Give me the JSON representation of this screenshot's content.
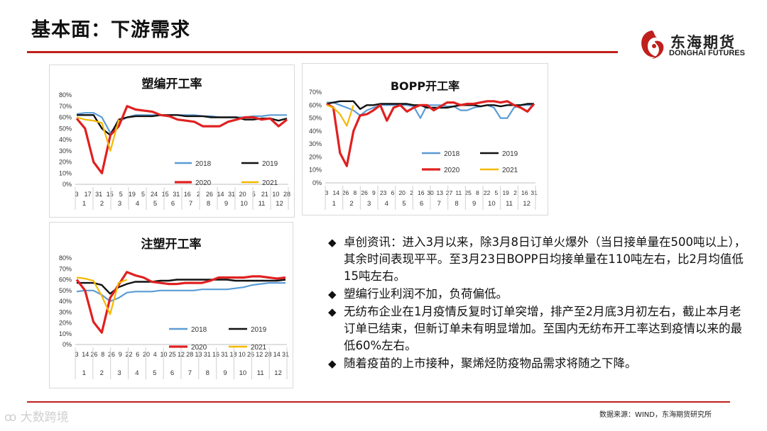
{
  "page": {
    "title": "基本面：下游需求"
  },
  "logo": {
    "name_cn": "东海期货",
    "name_en": "DONGHAI FUTURES"
  },
  "source": "数据来源：WIND，东海期货研究所",
  "watermark": "大数跨境",
  "colors": {
    "s2018": "#5b9bd5",
    "s2019": "#111111",
    "s2020": "#e02020",
    "s2021": "#f5b800",
    "accent": "#c0201c"
  },
  "bullets": [
    "卓创资讯：进入3月以来，除3月8日订单火爆外（当日接单量在500吨以上），其余时间表现平平。至3月23日BOPP日均接单量在110吨左右，比2月均值低15吨左右。",
    "塑编行业利润不加，负荷偏低。",
    "无纺布企业在1月疫情反复时订单突增，排产至2月底3月初左右，截止本月老订单已结束，但新订单未有明显增加。至国内无纺布开工率达到疫情以来的最低60%左右。",
    "随着疫苗的上市接种，聚烯烃防疫物品需求将随之下降。"
  ],
  "chart_data": [
    {
      "type": "line",
      "title": "塑编开工率",
      "ylim": [
        0,
        80
      ],
      "yticks": [
        "0%",
        "10%",
        "20%",
        "30%",
        "40%",
        "50%",
        "60%",
        "70%",
        "80%"
      ],
      "xticks": [
        "3",
        "17",
        "31",
        "15",
        "5",
        "19",
        "5",
        "24",
        "15",
        "31",
        "16",
        "2",
        "26",
        "14",
        "31",
        "20",
        "5",
        "21",
        "10",
        "28"
      ],
      "months": [
        "1",
        "2",
        "3",
        "4",
        "5",
        "6",
        "7",
        "8",
        "9",
        "10",
        "11",
        "12"
      ],
      "legend": [
        "2018",
        "2019",
        "2020",
        "2021"
      ],
      "series": [
        {
          "name": "2018",
          "values": [
            63,
            64,
            64,
            60,
            46,
            56,
            60,
            62,
            62,
            62,
            62,
            62,
            62,
            62,
            62,
            61,
            61,
            60,
            60,
            60,
            60,
            61,
            61,
            62,
            62,
            62
          ]
        },
        {
          "name": "2019",
          "values": [
            62,
            62,
            62,
            50,
            44,
            58,
            60,
            61,
            61,
            61,
            62,
            62,
            62,
            61,
            61,
            61,
            60,
            60,
            60,
            60,
            58,
            58,
            59,
            59,
            57,
            59
          ]
        },
        {
          "name": "2020",
          "values": [
            59,
            50,
            20,
            10,
            44,
            52,
            70,
            67,
            66,
            65,
            62,
            61,
            58,
            57,
            56,
            52,
            52,
            52,
            56,
            58,
            60,
            60,
            58,
            59,
            52,
            58
          ]
        },
        {
          "name": "2021",
          "values": [
            60,
            58,
            57,
            55,
            30,
            58
          ]
        }
      ]
    },
    {
      "type": "line",
      "title": "BOPP开工率",
      "ylim": [
        0,
        70
      ],
      "yticks": [
        "0%",
        "10%",
        "20%",
        "30%",
        "40%",
        "50%",
        "60%",
        "70%"
      ],
      "xticks": [
        "3",
        "14",
        "26",
        "8",
        "26",
        "9",
        "23",
        "6",
        "20",
        "2",
        "16",
        "30",
        "13",
        "27",
        "11",
        "25",
        "8",
        "22",
        "5",
        "19",
        "2",
        "16",
        "31"
      ],
      "months": [
        "1",
        "2",
        "3",
        "4",
        "5",
        "6",
        "7",
        "8",
        "9",
        "10",
        "11",
        "12"
      ],
      "legend": [
        "2018",
        "2019",
        "2020",
        "2021"
      ],
      "series": [
        {
          "name": "2018",
          "values": [
            62,
            62,
            60,
            58,
            56,
            52,
            56,
            58,
            60,
            60,
            60,
            60,
            60,
            59,
            50,
            60,
            60,
            60,
            59,
            59,
            56,
            56,
            58,
            59,
            60,
            58,
            50,
            50,
            58,
            60,
            60,
            60
          ]
        },
        {
          "name": "2019",
          "values": [
            61,
            62,
            63,
            63,
            63,
            57,
            60,
            60,
            61,
            61,
            61,
            61,
            61,
            60,
            60,
            58,
            58,
            58,
            58,
            59,
            60,
            60,
            60,
            59,
            60,
            60,
            59,
            60,
            60,
            60,
            61,
            61
          ]
        },
        {
          "name": "2020",
          "values": [
            61,
            58,
            23,
            13,
            40,
            52,
            53,
            56,
            60,
            48,
            58,
            60,
            55,
            58,
            60,
            60,
            56,
            59,
            62,
            62,
            60,
            61,
            61,
            62,
            63,
            63,
            62,
            63,
            60,
            58,
            55,
            61
          ]
        },
        {
          "name": "2021",
          "values": [
            60,
            58,
            53,
            44,
            60
          ]
        }
      ]
    },
    {
      "type": "line",
      "title": "注塑开工率",
      "ylim": [
        0,
        80
      ],
      "yticks": [
        "0%",
        "10%",
        "20%",
        "30%",
        "40%",
        "50%",
        "60%",
        "70%",
        "80%"
      ],
      "xticks": [
        "3",
        "14",
        "26",
        "8",
        "26",
        "9",
        "22",
        "6",
        "20",
        "4",
        "10",
        "25",
        "12",
        "28",
        "13",
        "31",
        "16",
        "31",
        "18",
        "10",
        "26",
        "12",
        "28",
        "14",
        "31"
      ],
      "months": [
        "1",
        "2",
        "3",
        "4",
        "5",
        "6",
        "7",
        "8",
        "9",
        "10",
        "11",
        "12"
      ],
      "legend": [
        "2018",
        "2019",
        "2020",
        "2021"
      ],
      "series": [
        {
          "name": "2018",
          "values": [
            49,
            50,
            50,
            46,
            40,
            43,
            48,
            49,
            49,
            49,
            50,
            50,
            50,
            50,
            50,
            51,
            51,
            51,
            51,
            52,
            53,
            55,
            56,
            57,
            57,
            57
          ]
        },
        {
          "name": "2019",
          "values": [
            57,
            57,
            57,
            55,
            47,
            53,
            56,
            58,
            58,
            58,
            59,
            59,
            60,
            60,
            60,
            60,
            60,
            60,
            60,
            59,
            59,
            59,
            59,
            59,
            59,
            60
          ]
        },
        {
          "name": "2020",
          "values": [
            60,
            50,
            21,
            11,
            43,
            55,
            67,
            64,
            62,
            58,
            57,
            56,
            56,
            57,
            57,
            57,
            59,
            62,
            62,
            62,
            62,
            63,
            63,
            62,
            61,
            62
          ]
        },
        {
          "name": "2021",
          "values": [
            62,
            61,
            59,
            45,
            28,
            57,
            60
          ]
        }
      ]
    }
  ]
}
